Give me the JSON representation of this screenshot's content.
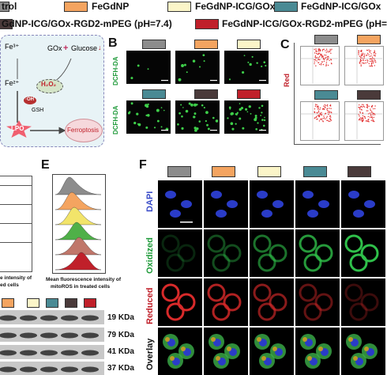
{
  "legend": {
    "items": [
      {
        "label": "trol",
        "color": "#8c8c8c"
      },
      {
        "label": "FeGdNP",
        "color": "#f4a460"
      },
      {
        "label": "FeGdNP-ICG/GOx",
        "color": "#fbf5c8"
      },
      {
        "label": "FeGdNP-ICG/GOx",
        "color": "#4a8a94"
      },
      {
        "label": "GdNP-ICG/GOx-RGD2-mPEG (pH=7.4)",
        "color": "#4a3a3a"
      },
      {
        "label": "FeGdNP-ICG/GOx-RGD2-mPEG (pH=",
        "color": "#c0202a"
      }
    ]
  },
  "panelA": {
    "fe3": "Fe³⁺",
    "gox": "GOx",
    "plus": "+",
    "glucose": "Glucose",
    "fe2": "Fe²⁺",
    "h2o2": "H₂O₂",
    "oh": "·OH",
    "gsh": "GSH",
    "lpo": "LPO",
    "ferroptosis": "Ferroptosis"
  },
  "panelB": {
    "label": "B",
    "row_label": "DCFH-DA",
    "swatch_colors": [
      "#8c8c8c",
      "#f4a460",
      "#fbf5c8",
      "#4a8a94",
      "#4a3a3a",
      "#c0202a"
    ]
  },
  "panelC": {
    "label": "C",
    "yaxis": "Red"
  },
  "panelD": {
    "xlabel_line1": "e intensity of",
    "xlabel_line2": "ed cells"
  },
  "panelE": {
    "label": "E",
    "xlabel_line1": "Mean fluorescence intensity of",
    "xlabel_line2": "mitoROS in treated cells",
    "hist_colors": [
      "#8c8c8c",
      "#f4a460",
      "#f2e46a",
      "#4fb048",
      "#c0766a",
      "#c0202a"
    ]
  },
  "panelF": {
    "label": "F",
    "rows": [
      "DAPI",
      "Oxidized",
      "Reduced",
      "Overlay"
    ],
    "row_colors": [
      "#3a4cc8",
      "#1f9a3a",
      "#c0202a",
      "#111111"
    ],
    "swatch_colors": [
      "#8c8c8c",
      "#f4a460",
      "#fbf5c8",
      "#4a8a94",
      "#4a3a3a"
    ]
  },
  "blot": {
    "bands": [
      "19 KDa",
      "79 KDa",
      "41 KDa",
      "37 KDa"
    ]
  }
}
